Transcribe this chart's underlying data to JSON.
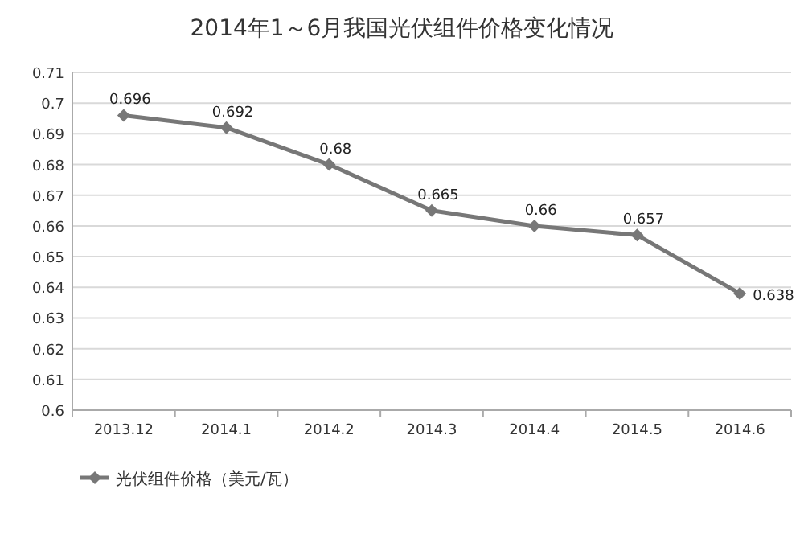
{
  "chart_data": {
    "type": "line",
    "title": "2014年1～6月我国光伏组件价格变化情况",
    "categories": [
      "2013.12",
      "2014.1",
      "2014.2",
      "2014.3",
      "2014.4",
      "2014.5",
      "2014.6"
    ],
    "series": [
      {
        "name": "光伏组件价格（美元/瓦）",
        "color": "#777777",
        "values": [
          0.696,
          0.692,
          0.68,
          0.665,
          0.66,
          0.657,
          0.638
        ]
      }
    ],
    "ylim": [
      0.6,
      0.71
    ],
    "yticks": [
      0.6,
      0.61,
      0.62,
      0.63,
      0.64,
      0.65,
      0.66,
      0.67,
      0.68,
      0.69,
      0.7,
      0.71
    ],
    "grid": "y",
    "legend": "bottom",
    "marker": "diamond",
    "data_labels": true
  }
}
